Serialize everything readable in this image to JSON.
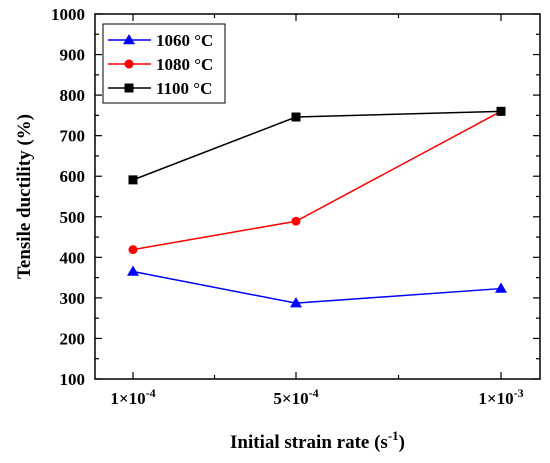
{
  "chart_data": {
    "type": "line",
    "title": "",
    "xlabel": "Initial strain rate (s",
    "xlabel_sup": "-1",
    "xlabel_end": ")",
    "ylabel": "Tensile ductility (%)",
    "ylim": [
      100,
      1000
    ],
    "yticks": [
      100,
      200,
      300,
      400,
      500,
      600,
      700,
      800,
      900,
      1000
    ],
    "yticks_minor_step": 50,
    "categories": [
      {
        "base": "1×10",
        "exp": "-4"
      },
      {
        "base": "5×10",
        "exp": "-4"
      },
      {
        "base": "1×10",
        "exp": "-3"
      }
    ],
    "x_positions": [
      0.0001,
      0.0005,
      0.001
    ],
    "grid": false,
    "legend_position": "top-left",
    "series": [
      {
        "name": "1060 °C",
        "color": "#0000ff",
        "marker": "triangle",
        "values": [
          365,
          287,
          323
        ]
      },
      {
        "name": "1080 °C",
        "color": "#ff0000",
        "marker": "circle",
        "values": [
          419,
          489,
          760
        ]
      },
      {
        "name": "1100 °C",
        "color": "#000000",
        "marker": "square",
        "values": [
          591,
          746,
          760
        ]
      }
    ]
  }
}
